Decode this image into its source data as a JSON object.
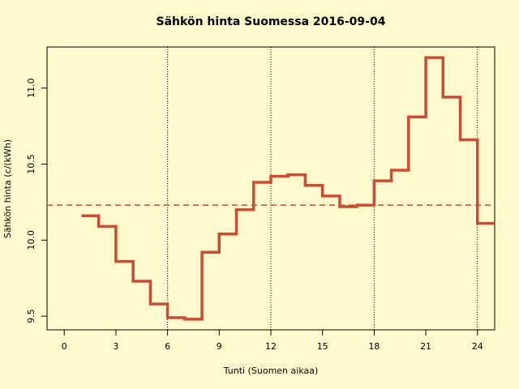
{
  "chart_data": {
    "type": "step",
    "title": "Sähkön hinta Suomessa 2016-09-04",
    "xlabel": "Tunti (Suomen aikaa)",
    "ylabel": "Sähkön hinta (c/(kWh)",
    "x": [
      1,
      2,
      3,
      4,
      5,
      6,
      7,
      8,
      9,
      10,
      11,
      12,
      13,
      14,
      15,
      16,
      17,
      18,
      19,
      20,
      21,
      22,
      23,
      24,
      25
    ],
    "values": [
      10.16,
      10.09,
      9.86,
      9.73,
      9.58,
      9.49,
      9.48,
      9.92,
      10.04,
      10.2,
      10.38,
      10.42,
      10.43,
      10.36,
      10.29,
      10.22,
      10.23,
      10.39,
      10.46,
      10.81,
      11.2,
      10.94,
      10.66,
      10.11,
      10.11
    ],
    "color": "#cc4b33",
    "xlim": [
      -1,
      25
    ],
    "ylim": [
      9.41,
      11.27
    ],
    "xticks": [
      0,
      3,
      6,
      9,
      12,
      15,
      18,
      21,
      24
    ],
    "yticks": [
      9.5,
      {
        "value": 10,
        "label": "10.0"
      },
      10.5,
      {
        "value": 11,
        "label": "11.0"
      }
    ],
    "reference_line": {
      "value": 10.23,
      "style": "dashed"
    },
    "vlines": [
      6,
      12,
      18,
      24
    ]
  }
}
